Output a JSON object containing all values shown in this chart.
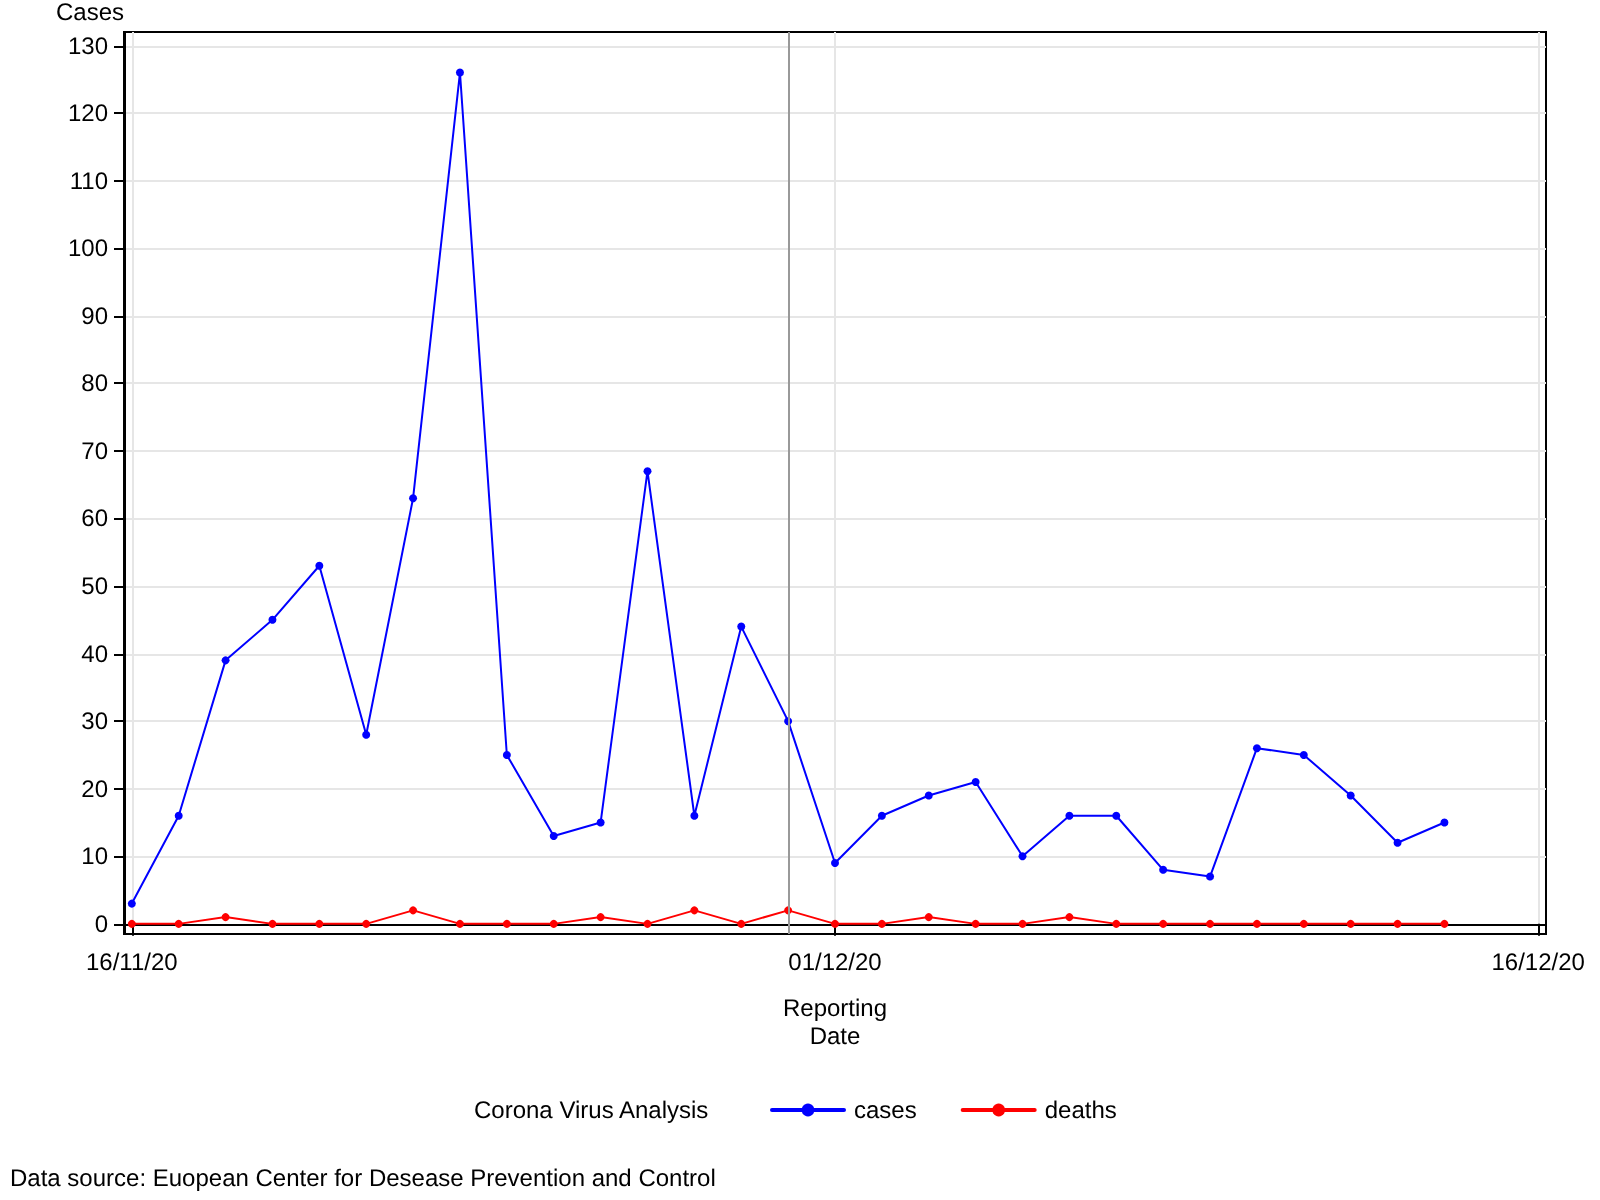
{
  "chart_data": {
    "type": "line",
    "xlabel": "Reporting Date",
    "ylabel": "Cases",
    "legend_title": "Corona Virus Analysis",
    "annotations": [
      "Data source: Euopean Center for Desease Prevention and Control"
    ],
    "x": [
      "2020-11-16",
      "2020-11-17",
      "2020-11-18",
      "2020-11-19",
      "2020-11-20",
      "2020-11-21",
      "2020-11-22",
      "2020-11-23",
      "2020-11-24",
      "2020-11-25",
      "2020-11-26",
      "2020-11-27",
      "2020-11-28",
      "2020-11-29",
      "2020-11-30",
      "2020-12-01",
      "2020-12-02",
      "2020-12-03",
      "2020-12-04",
      "2020-12-05",
      "2020-12-06",
      "2020-12-07",
      "2020-12-08",
      "2020-12-09",
      "2020-12-10",
      "2020-12-11",
      "2020-12-12",
      "2020-12-13",
      "2020-12-14"
    ],
    "series": [
      {
        "name": "cases",
        "color": "#0000ff",
        "values": [
          3,
          16,
          39,
          45,
          53,
          28,
          63,
          126,
          25,
          13,
          15,
          67,
          16,
          44,
          30,
          9,
          16,
          19,
          21,
          10,
          16,
          16,
          8,
          7,
          26,
          25,
          19,
          12,
          15
        ]
      },
      {
        "name": "deaths",
        "color": "#ff0000",
        "values": [
          0,
          0,
          1,
          0,
          0,
          0,
          2,
          0,
          0,
          0,
          1,
          0,
          2,
          0,
          2,
          0,
          0,
          1,
          0,
          0,
          1,
          0,
          0,
          0,
          0,
          0,
          0,
          0,
          0
        ]
      }
    ],
    "xlim": [
      "2020-11-15T20:00",
      "2020-12-16T04:00"
    ],
    "xticks": [
      {
        "value": "2020-11-16",
        "label": "16/11/20"
      },
      {
        "value": "2020-12-01",
        "label": "01/12/20"
      },
      {
        "value": "2020-12-16",
        "label": "16/12/20"
      }
    ],
    "ylim": [
      -1.5,
      132
    ],
    "yticks": [
      0,
      10,
      20,
      30,
      40,
      50,
      60,
      70,
      80,
      90,
      100,
      110,
      120,
      130
    ],
    "ref_lines": [
      {
        "axis": "x",
        "value": "2020-11-30",
        "color": "#999999"
      }
    ],
    "grid": true,
    "legend": "bottom",
    "marker": "circle",
    "line_style": "solid"
  }
}
